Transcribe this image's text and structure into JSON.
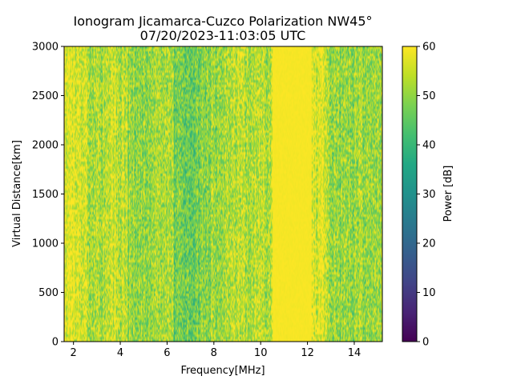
{
  "chart_data": {
    "type": "heatmap",
    "title_line1": "Ionogram Jicamarca-Cuzco Polarization NW45°",
    "title_line2": "07/20/2023-11:03:05 UTC",
    "xlabel": "Frequency[MHz]",
    "ylabel": "Virtual Distance[km]",
    "colorbar_label": "Power [dB]",
    "colormap": "viridis",
    "xlim": [
      1.6,
      15.2
    ],
    "ylim": [
      0,
      3000
    ],
    "clim": [
      0,
      60
    ],
    "x_ticks": [
      2,
      4,
      6,
      8,
      10,
      12,
      14
    ],
    "x_tick_labels": [
      "2",
      "4",
      "6",
      "8",
      "10",
      "12",
      "14"
    ],
    "y_ticks": [
      0,
      500,
      1000,
      1500,
      2000,
      2500,
      3000
    ],
    "y_tick_labels": [
      "0",
      "500",
      "1000",
      "1500",
      "2000",
      "2500",
      "3000"
    ],
    "colorbar_ticks": [
      0,
      10,
      20,
      30,
      40,
      50,
      60
    ],
    "colorbar_tick_labels": [
      "0",
      "10",
      "20",
      "30",
      "40",
      "50",
      "60"
    ],
    "frequency_bands_mhz": [
      {
        "from": 1.6,
        "to": 2.6,
        "mean_db": 57
      },
      {
        "from": 2.6,
        "to": 3.5,
        "mean_db": 53
      },
      {
        "from": 3.5,
        "to": 4.3,
        "mean_db": 55
      },
      {
        "from": 4.3,
        "to": 5.5,
        "mean_db": 50
      },
      {
        "from": 5.5,
        "to": 6.3,
        "mean_db": 53
      },
      {
        "from": 6.3,
        "to": 7.5,
        "mean_db": 47
      },
      {
        "from": 7.5,
        "to": 8.5,
        "mean_db": 50
      },
      {
        "from": 8.5,
        "to": 10.5,
        "mean_db": 54
      },
      {
        "from": 10.5,
        "to": 12.2,
        "mean_db": 60
      },
      {
        "from": 12.2,
        "to": 12.8,
        "mean_db": 58
      },
      {
        "from": 12.8,
        "to": 15.2,
        "mean_db": 51
      }
    ]
  }
}
